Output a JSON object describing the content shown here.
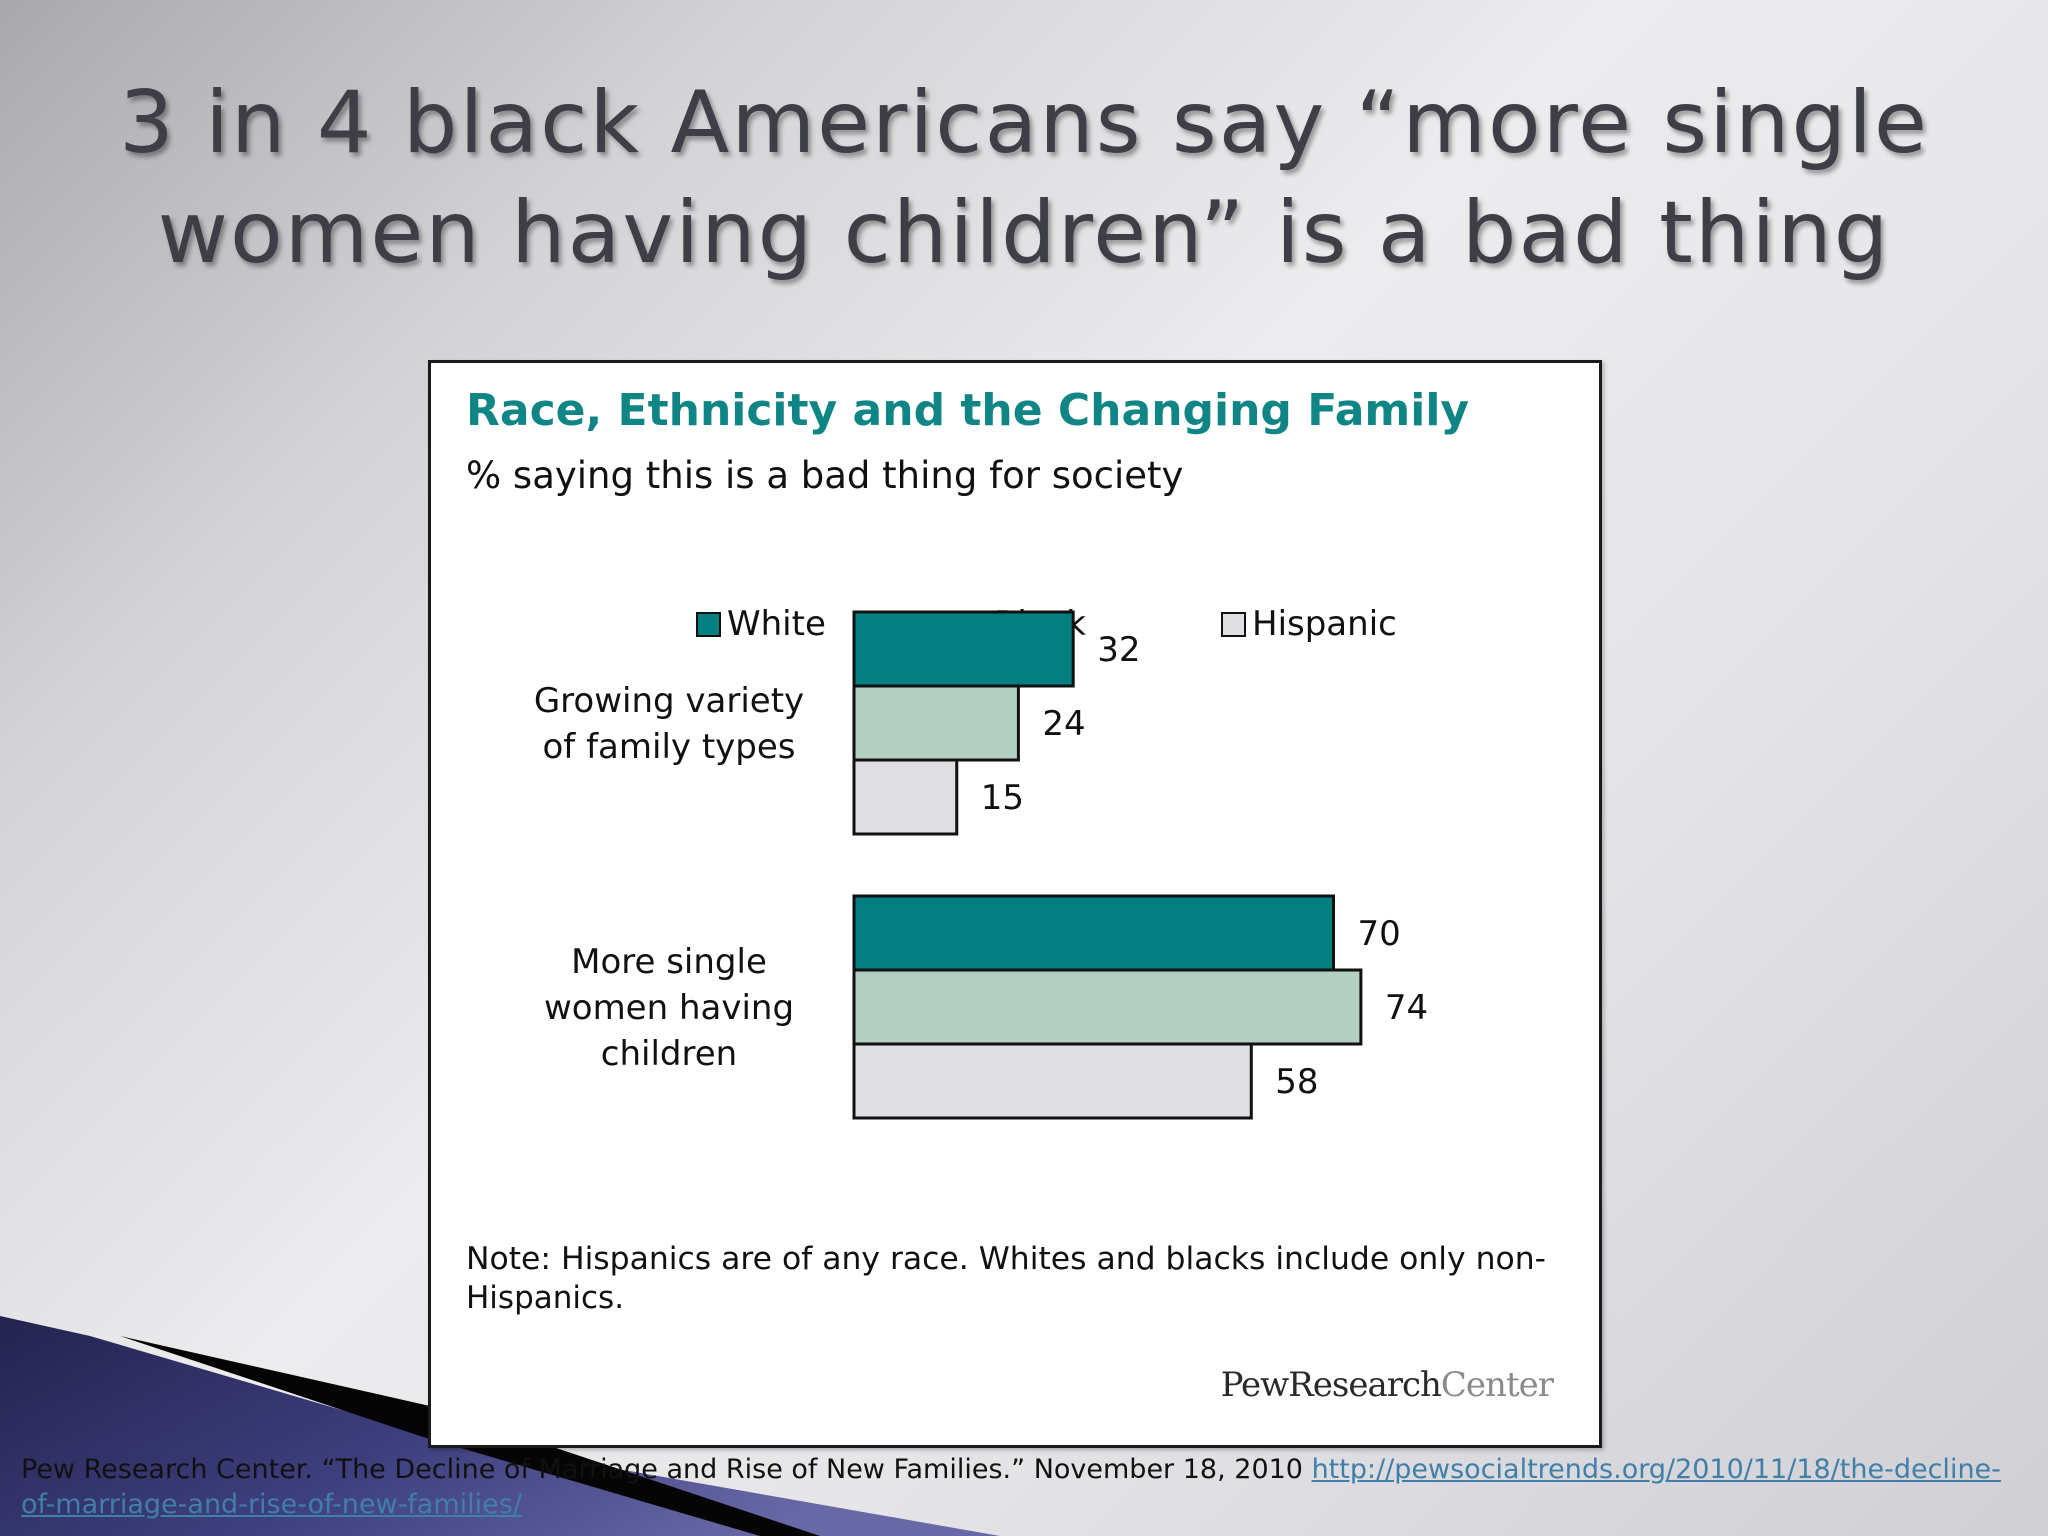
{
  "slide": {
    "title_line1": "3 in 4 black Americans say “more single",
    "title_line2": "women having children” is a bad thing"
  },
  "citation": {
    "text": "Pew Research Center. “The Decline of Marriage and Rise of New Families.” November 18, 2010 ",
    "link": "http://pewsocialtrends.org/2010/11/18/the-decline-of-marriage-and-rise-of-new-families/"
  },
  "colors": {
    "white_series": "#037f7f",
    "black_series": "#b3cfc1",
    "hispanic_series": "#dfdee2",
    "title_teal": "#108585"
  },
  "chart_data": {
    "type": "bar",
    "orientation": "horizontal",
    "title": "Race, Ethnicity and the Changing Family",
    "subtitle": "% saying this is a bad thing for society",
    "categories": [
      [
        "Growing variety",
        "of family types"
      ],
      [
        "More single",
        "women having",
        "children"
      ]
    ],
    "series": [
      {
        "name": "White",
        "values": [
          32,
          70
        ]
      },
      {
        "name": "Black",
        "values": [
          24,
          74
        ]
      },
      {
        "name": "Hispanic",
        "values": [
          15,
          58
        ]
      }
    ],
    "note_line1": "Note: Hispanics are of any race. Whites and blacks include only non-",
    "note_line2": "Hispanics.",
    "source_brand_a": "PewResearch",
    "source_brand_b": "Center",
    "legend_position": "top",
    "grid": false,
    "xlim": [
      0,
      100
    ]
  }
}
